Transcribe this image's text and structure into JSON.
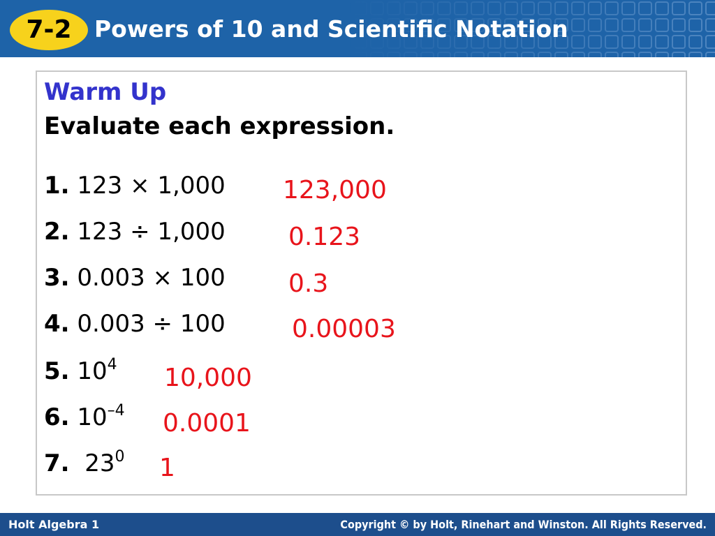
{
  "header": {
    "badge": "7-2",
    "title": "Powers of 10 and Scientific Notation"
  },
  "content": {
    "heading": "Warm Up",
    "instruction": "Evaluate each expression.",
    "items": [
      {
        "number": "1.",
        "expression": "123 × 1,000",
        "answer": "123,000"
      },
      {
        "number": "2.",
        "expression": "123 ÷ 1,000",
        "answer": "0.123"
      },
      {
        "number": "3.",
        "expression": "0.003 × 100",
        "answer": "0.3"
      },
      {
        "number": "4.",
        "expression": "0.003 ÷ 100",
        "answer": "0.00003"
      },
      {
        "number": "5.",
        "base": "10",
        "exponent": "4",
        "answer": "10,000"
      },
      {
        "number": "6.",
        "base": "10",
        "exponent": "–4",
        "answer": "0.0001"
      },
      {
        "number": "7.",
        "base": "23",
        "exponent": "0",
        "answer": "1"
      }
    ]
  },
  "footer": {
    "course": "Holt Algebra 1",
    "copyright": "Copyright © by Holt, Rinehart and Winston. All Rights Reserved."
  }
}
